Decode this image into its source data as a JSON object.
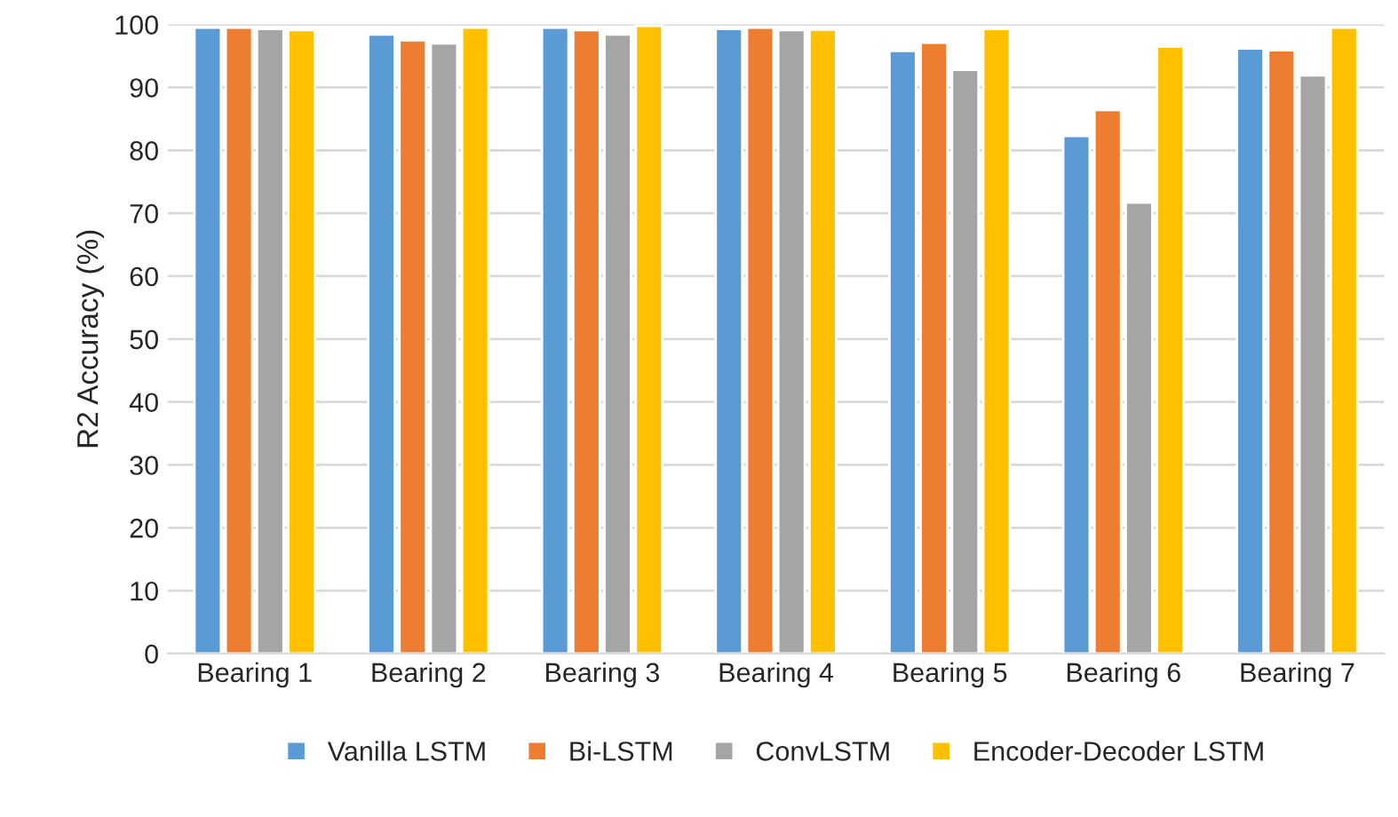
{
  "chart_data": {
    "type": "bar",
    "ylabel": "R2 Accuracy (%)",
    "categories": [
      "Bearing 1",
      "Bearing 2",
      "Bearing 3",
      "Bearing 4",
      "Bearing 5",
      "Bearing 6",
      "Bearing 7"
    ],
    "series": [
      {
        "name": "Vanilla LSTM",
        "color": "#5b9bd5",
        "values": [
          99.5,
          98.4,
          99.5,
          99.3,
          95.8,
          82.3,
          96.2
        ]
      },
      {
        "name": "Bi-LSTM",
        "color": "#ed7d31",
        "values": [
          99.5,
          97.5,
          99.1,
          99.5,
          97.1,
          86.4,
          95.9
        ]
      },
      {
        "name": "ConvLSTM",
        "color": "#a5a5a5",
        "values": [
          99.3,
          97.0,
          98.4,
          99.1,
          92.8,
          71.7,
          91.9
        ]
      },
      {
        "name": "Encoder-Decoder LSTM",
        "color": "#ffc000",
        "values": [
          99.1,
          99.5,
          99.8,
          99.2,
          99.3,
          96.5,
          99.5
        ]
      }
    ],
    "ylim": [
      0,
      100
    ],
    "yticks": [
      0,
      10,
      20,
      30,
      40,
      50,
      60,
      70,
      80,
      90,
      100
    ],
    "grid": "y",
    "legend": "bottom"
  }
}
